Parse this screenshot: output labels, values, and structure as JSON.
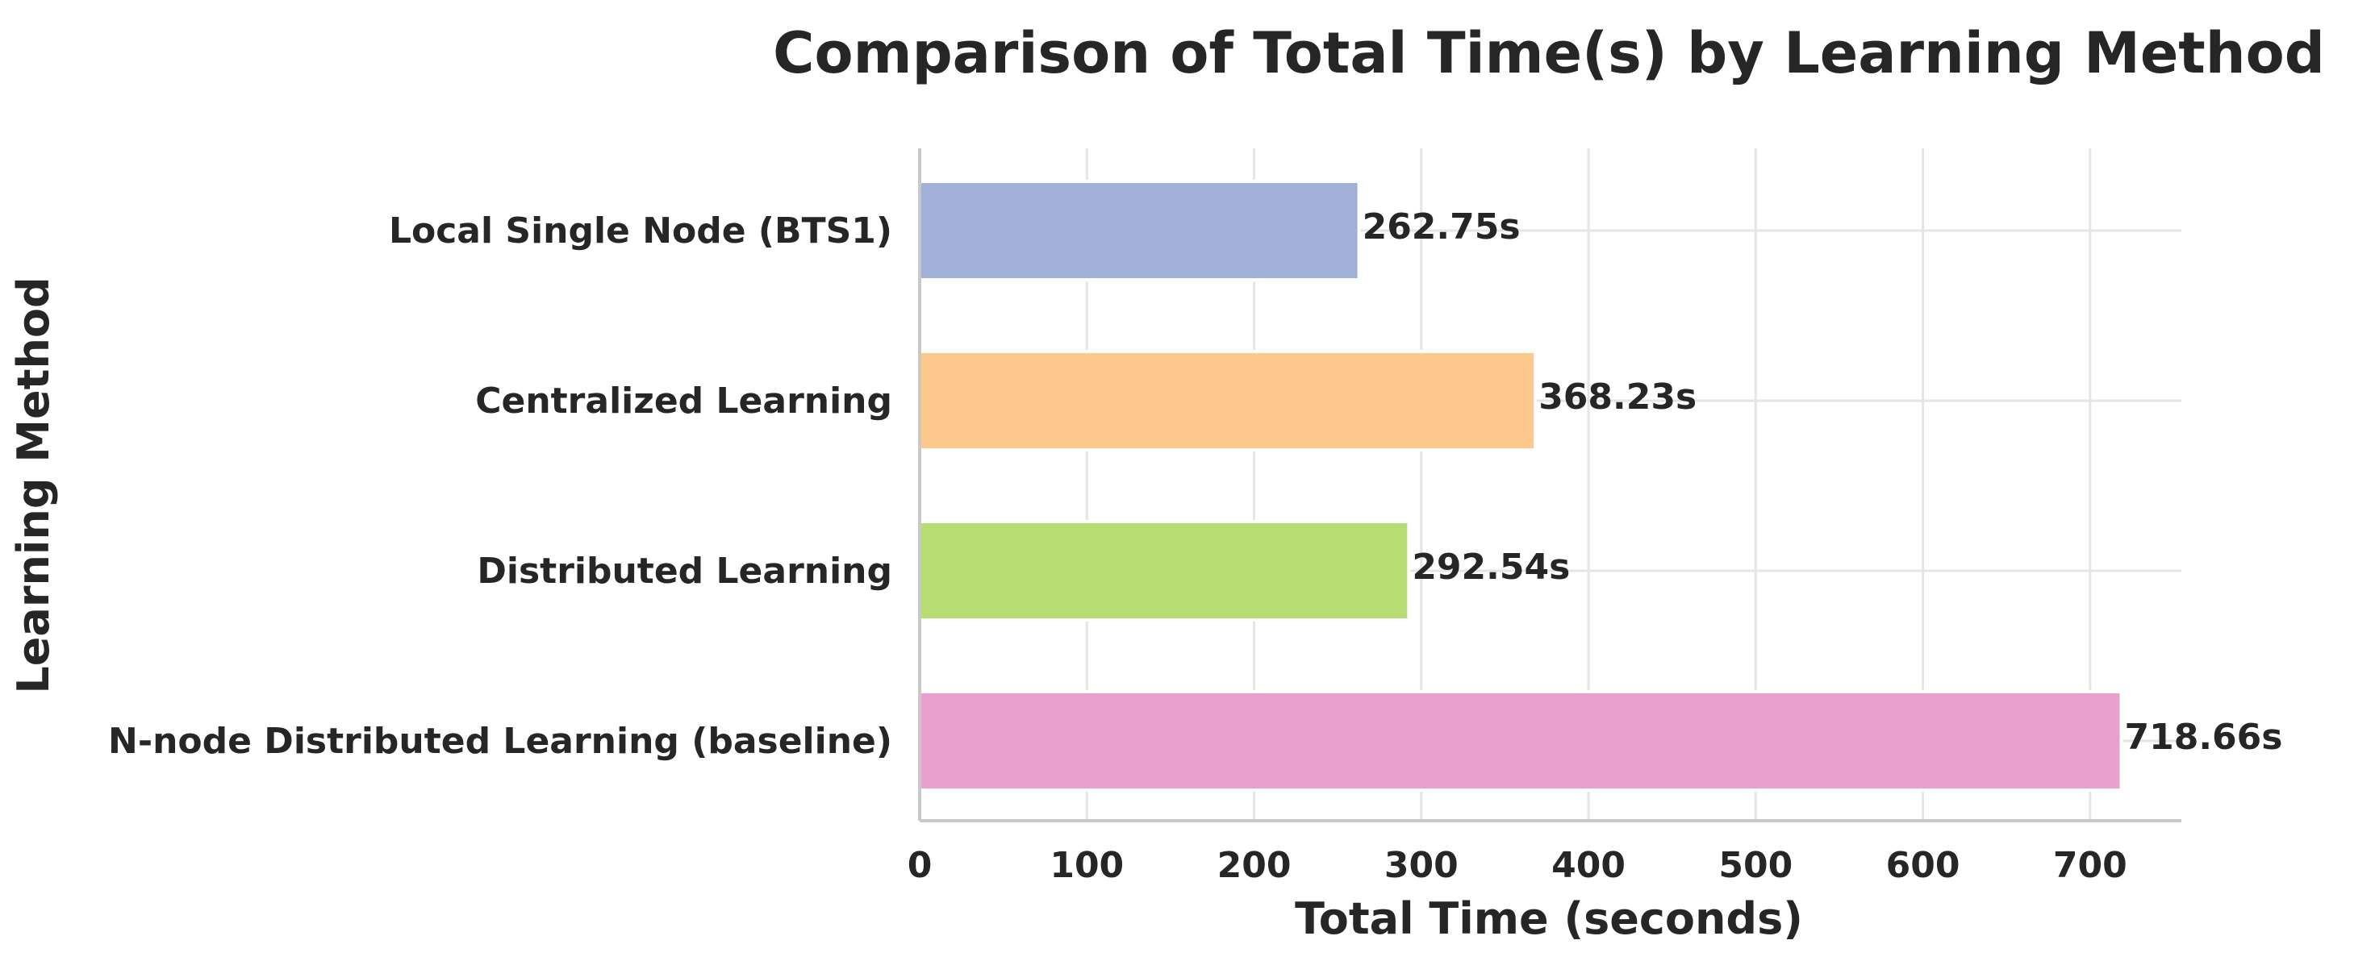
{
  "chart_data": {
    "type": "bar",
    "orientation": "horizontal",
    "title": "Comparison of Total Time(s) by Learning Method",
    "xlabel": "Total Time (seconds)",
    "ylabel": "Learning Method",
    "categories": [
      "Local Single Node (BTS1)",
      "Centralized Learning",
      "Distributed Learning",
      "N-node Distributed Learning (baseline)"
    ],
    "values": [
      262.75,
      368.23,
      292.54,
      718.66
    ],
    "data_labels": [
      "262.75s",
      "368.23s",
      "292.54s",
      "718.66s"
    ],
    "colors": [
      "#a1b0d6",
      "#fdc88b",
      "#b6de73",
      "#e9a0cc"
    ],
    "xlim": [
      0,
      754.6
    ],
    "xticks": [
      0,
      100,
      200,
      300,
      400,
      500,
      600,
      700
    ],
    "grid": true,
    "legend": "none"
  }
}
